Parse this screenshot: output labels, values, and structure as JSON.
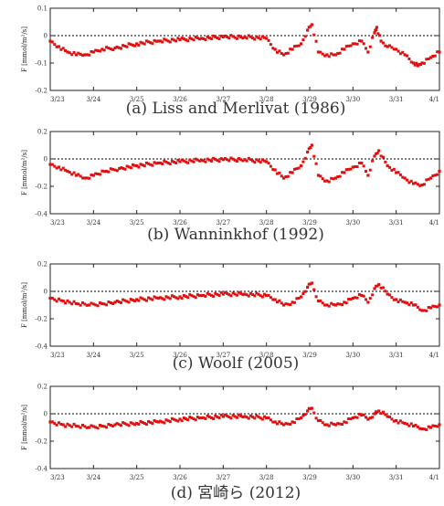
{
  "colors": {
    "data": "#e01010",
    "axis": "#222222",
    "zero_line": "#000000"
  },
  "chart_data": [
    {
      "type": "scatter",
      "caption": "(a) Liss and Merlivat (1986)",
      "ylabel": "F [mmol/m²/s]",
      "ylim": [
        -0.2,
        0.1
      ],
      "yticks": [
        "0.1",
        "0",
        "-0.1",
        "-0.2"
      ],
      "ytick_values": [
        0.1,
        0,
        -0.1,
        -0.2
      ],
      "xlim": [
        0,
        9
      ],
      "xticks": [
        "3/23",
        "3/24",
        "3/25",
        "3/26",
        "3/27",
        "3/28",
        "3/29",
        "3/30",
        "3/31",
        "4/1"
      ],
      "grid": false,
      "x": [
        0.0,
        0.2,
        0.4,
        0.6,
        0.8,
        1.0,
        1.2,
        1.5,
        2.0,
        2.5,
        3.0,
        3.5,
        4.0,
        4.5,
        5.0,
        5.2,
        5.4,
        5.6,
        5.8,
        5.95,
        6.05,
        6.2,
        6.4,
        6.6,
        6.8,
        7.0,
        7.2,
        7.35,
        7.5,
        7.55,
        7.65,
        7.8,
        8.0,
        8.2,
        8.4,
        8.5,
        8.6,
        8.8,
        9.0
      ],
      "y": [
        -0.02,
        -0.04,
        -0.06,
        -0.07,
        -0.07,
        -0.06,
        -0.05,
        -0.045,
        -0.03,
        -0.02,
        -0.015,
        -0.01,
        -0.005,
        -0.005,
        -0.01,
        -0.05,
        -0.07,
        -0.05,
        -0.03,
        0.02,
        0.04,
        -0.06,
        -0.07,
        -0.07,
        -0.05,
        -0.03,
        -0.02,
        -0.06,
        0.01,
        0.03,
        -0.02,
        -0.04,
        -0.05,
        -0.07,
        -0.1,
        -0.11,
        -0.1,
        -0.08,
        -0.06
      ]
    },
    {
      "type": "scatter",
      "caption": "(b) Wanninkhof (1992)",
      "ylabel": "F [mmol/m²/s]",
      "ylim": [
        -0.4,
        0.2
      ],
      "yticks": [
        "0.2",
        "0",
        "-0.2",
        "-0.4"
      ],
      "ytick_values": [
        0.2,
        0,
        -0.2,
        -0.4
      ],
      "xlim": [
        0,
        9
      ],
      "xticks": [
        "3/23",
        "3/24",
        "3/25",
        "3/26",
        "3/27",
        "3/28",
        "3/29",
        "3/30",
        "3/31",
        "4/1"
      ],
      "grid": false,
      "x": [
        0.0,
        0.2,
        0.4,
        0.6,
        0.8,
        1.0,
        1.3,
        1.6,
        2.0,
        2.5,
        3.0,
        3.5,
        4.0,
        4.5,
        5.0,
        5.2,
        5.4,
        5.6,
        5.8,
        5.95,
        6.05,
        6.2,
        6.4,
        6.6,
        6.8,
        7.0,
        7.2,
        7.35,
        7.5,
        7.6,
        7.8,
        8.0,
        8.2,
        8.4,
        8.6,
        8.8,
        9.0
      ],
      "y": [
        -0.04,
        -0.06,
        -0.09,
        -0.12,
        -0.14,
        -0.12,
        -0.09,
        -0.07,
        -0.05,
        -0.03,
        -0.02,
        -0.01,
        -0.005,
        -0.005,
        -0.02,
        -0.08,
        -0.14,
        -0.1,
        -0.05,
        0.05,
        0.1,
        -0.12,
        -0.16,
        -0.14,
        -0.1,
        -0.06,
        -0.03,
        -0.12,
        0.02,
        0.06,
        -0.05,
        -0.1,
        -0.14,
        -0.18,
        -0.19,
        -0.14,
        -0.09
      ]
    },
    {
      "type": "scatter",
      "caption": "(c) Woolf (2005)",
      "ylabel": "F [mmol/m²/s]",
      "ylim": [
        -0.4,
        0.2
      ],
      "yticks": [
        "0.2",
        "0",
        "-0.2",
        "-0.4"
      ],
      "ytick_values": [
        0.2,
        0,
        -0.2,
        -0.4
      ],
      "xlim": [
        0,
        9
      ],
      "xticks": [
        "3/23",
        "3/24",
        "3/25",
        "3/26",
        "3/27",
        "3/28",
        "3/29",
        "3/30",
        "3/31",
        "4/1"
      ],
      "grid": false,
      "x": [
        0.0,
        0.3,
        0.6,
        0.9,
        1.2,
        1.5,
        2.0,
        2.5,
        3.0,
        3.5,
        4.0,
        4.5,
        5.0,
        5.2,
        5.4,
        5.6,
        5.8,
        5.95,
        6.05,
        6.2,
        6.4,
        6.6,
        6.8,
        7.0,
        7.2,
        7.35,
        7.5,
        7.6,
        7.8,
        8.0,
        8.2,
        8.4,
        8.6,
        8.8,
        9.0
      ],
      "y": [
        -0.05,
        -0.07,
        -0.09,
        -0.1,
        -0.09,
        -0.08,
        -0.06,
        -0.05,
        -0.04,
        -0.03,
        -0.02,
        -0.02,
        -0.03,
        -0.06,
        -0.1,
        -0.08,
        -0.04,
        0.03,
        0.06,
        -0.07,
        -0.1,
        -0.1,
        -0.08,
        -0.05,
        -0.03,
        -0.08,
        0.02,
        0.05,
        -0.02,
        -0.06,
        -0.08,
        -0.1,
        -0.14,
        -0.12,
        -0.1
      ]
    },
    {
      "type": "scatter",
      "caption": "(d) 宮崎ら (2012)",
      "ylabel": "F [mmol/m²/s]",
      "ylim": [
        -0.4,
        0.2
      ],
      "yticks": [
        "0.2",
        "0",
        "-0.2",
        "-0.4"
      ],
      "ytick_values": [
        0.2,
        0,
        -0.2,
        -0.4
      ],
      "xlim": [
        0,
        9
      ],
      "xticks": [
        "3/23",
        "3/24",
        "3/25",
        "3/26",
        "3/27",
        "3/28",
        "3/29",
        "3/30",
        "3/31",
        "4/1"
      ],
      "grid": false,
      "x": [
        0.0,
        0.3,
        0.6,
        0.9,
        1.2,
        1.5,
        2.0,
        2.5,
        3.0,
        3.5,
        4.0,
        4.5,
        5.0,
        5.2,
        5.4,
        5.6,
        5.8,
        5.95,
        6.05,
        6.2,
        6.4,
        6.6,
        6.8,
        7.0,
        7.2,
        7.35,
        7.5,
        7.6,
        7.8,
        8.0,
        8.2,
        8.4,
        8.6,
        8.8,
        9.0
      ],
      "y": [
        -0.06,
        -0.08,
        -0.09,
        -0.1,
        -0.09,
        -0.08,
        -0.07,
        -0.06,
        -0.04,
        -0.03,
        -0.02,
        -0.02,
        -0.03,
        -0.06,
        -0.08,
        -0.06,
        -0.03,
        0.02,
        0.04,
        -0.05,
        -0.08,
        -0.08,
        -0.06,
        -0.03,
        -0.01,
        -0.04,
        0.0,
        0.02,
        -0.02,
        -0.05,
        -0.07,
        -0.09,
        -0.11,
        -0.1,
        -0.08
      ]
    }
  ]
}
